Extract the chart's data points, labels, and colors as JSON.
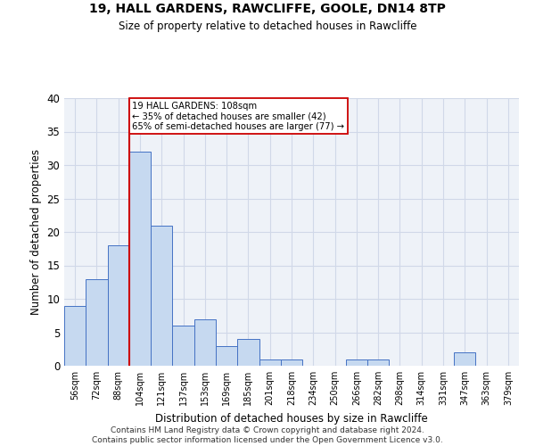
{
  "title1": "19, HALL GARDENS, RAWCLIFFE, GOOLE, DN14 8TP",
  "title2": "Size of property relative to detached houses in Rawcliffe",
  "xlabel": "Distribution of detached houses by size in Rawcliffe",
  "ylabel": "Number of detached properties",
  "categories": [
    "56sqm",
    "72sqm",
    "88sqm",
    "104sqm",
    "121sqm",
    "137sqm",
    "153sqm",
    "169sqm",
    "185sqm",
    "201sqm",
    "218sqm",
    "234sqm",
    "250sqm",
    "266sqm",
    "282sqm",
    "298sqm",
    "314sqm",
    "331sqm",
    "347sqm",
    "363sqm",
    "379sqm"
  ],
  "values": [
    9,
    13,
    18,
    32,
    21,
    6,
    7,
    3,
    4,
    1,
    1,
    0,
    0,
    1,
    1,
    0,
    0,
    0,
    2,
    0,
    0
  ],
  "bar_color": "#c6d9f0",
  "bar_edge_color": "#4472c4",
  "vline_color": "#cc0000",
  "annotation_line1": "19 HALL GARDENS: 108sqm",
  "annotation_line2": "← 35% of detached houses are smaller (42)",
  "annotation_line3": "65% of semi-detached houses are larger (77) →",
  "annotation_box_color": "#ffffff",
  "annotation_edge_color": "#cc0000",
  "ylim": [
    0,
    40
  ],
  "yticks": [
    0,
    5,
    10,
    15,
    20,
    25,
    30,
    35,
    40
  ],
  "footer": "Contains HM Land Registry data © Crown copyright and database right 2024.\nContains public sector information licensed under the Open Government Licence v3.0.",
  "grid_color": "#d0d8e8",
  "background_color": "#eef2f8",
  "vline_x_index": 3,
  "vline_x_offset": 0.25
}
